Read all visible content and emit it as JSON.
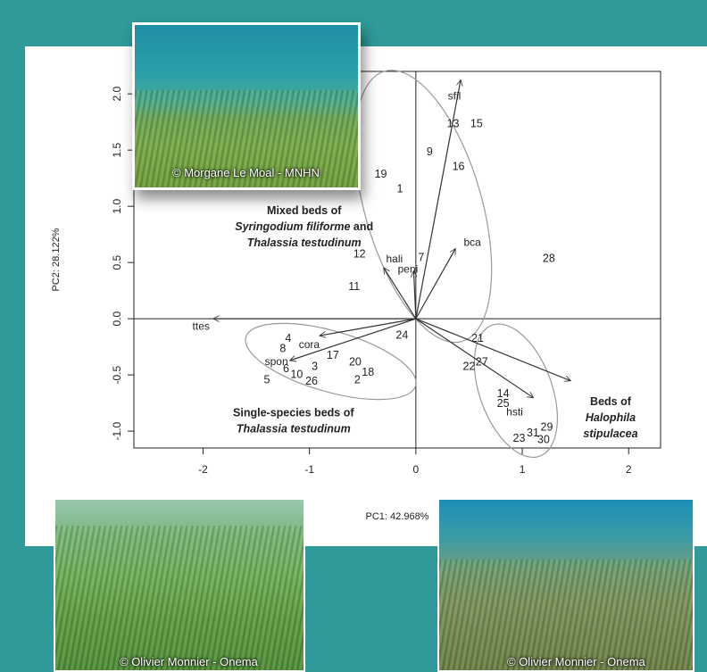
{
  "chart_data": {
    "type": "scatter",
    "title": "",
    "xlabel": "PC1: 42.968%",
    "ylabel": "PC2: 28.122%",
    "xlim": [
      -2.65,
      2.3
    ],
    "ylim": [
      -1.15,
      2.2
    ],
    "xticks": [
      -2,
      -1,
      0,
      1,
      2
    ],
    "yticks": [
      -1.0,
      -0.5,
      0.0,
      0.5,
      1.0,
      1.5,
      2.0
    ],
    "xtick_labels": [
      "-2",
      "-1",
      "0",
      "1",
      "2"
    ],
    "ytick_labels": [
      "-1.0",
      "-0.5",
      "0.0",
      "0.5",
      "1.0",
      "1.5",
      "2.0"
    ],
    "grid": false,
    "sites": [
      {
        "label": "1",
        "x": -0.15,
        "y": 1.15
      },
      {
        "label": "2",
        "x": -0.55,
        "y": -0.55
      },
      {
        "label": "3",
        "x": -0.95,
        "y": -0.43
      },
      {
        "label": "4",
        "x": -1.2,
        "y": -0.18
      },
      {
        "label": "5",
        "x": -1.4,
        "y": -0.55
      },
      {
        "label": "6",
        "x": -1.22,
        "y": -0.45
      },
      {
        "label": "7",
        "x": 0.05,
        "y": 0.54
      },
      {
        "label": "8",
        "x": -1.25,
        "y": -0.27
      },
      {
        "label": "9",
        "x": 0.13,
        "y": 1.48
      },
      {
        "label": "10",
        "x": -1.12,
        "y": -0.5
      },
      {
        "label": "11",
        "x": -0.58,
        "y": 0.28
      },
      {
        "label": "12",
        "x": -0.53,
        "y": 0.57
      },
      {
        "label": "13",
        "x": 0.35,
        "y": 1.73
      },
      {
        "label": "14",
        "x": 0.82,
        "y": -0.67
      },
      {
        "label": "15",
        "x": 0.57,
        "y": 1.73
      },
      {
        "label": "16",
        "x": 0.4,
        "y": 1.35
      },
      {
        "label": "17",
        "x": -0.78,
        "y": -0.33
      },
      {
        "label": "18",
        "x": -0.45,
        "y": -0.48
      },
      {
        "label": "19",
        "x": -0.33,
        "y": 1.28
      },
      {
        "label": "20",
        "x": -0.57,
        "y": -0.39
      },
      {
        "label": "21",
        "x": 0.58,
        "y": -0.18
      },
      {
        "label": "22",
        "x": 0.5,
        "y": -0.43
      },
      {
        "label": "23",
        "x": 0.97,
        "y": -1.07
      },
      {
        "label": "24",
        "x": -0.13,
        "y": -0.15
      },
      {
        "label": "25",
        "x": 0.82,
        "y": -0.76
      },
      {
        "label": "26",
        "x": -0.98,
        "y": -0.56
      },
      {
        "label": "27",
        "x": 0.62,
        "y": -0.39
      },
      {
        "label": "28",
        "x": 1.25,
        "y": 0.53
      },
      {
        "label": "29",
        "x": 1.23,
        "y": -0.97
      },
      {
        "label": "30",
        "x": 1.2,
        "y": -1.08
      },
      {
        "label": "31",
        "x": 1.1,
        "y": -1.02
      }
    ],
    "vectors": [
      {
        "label": "sfil",
        "x": 0.42,
        "y": 2.12,
        "lx": 0.3,
        "ly": 1.95
      },
      {
        "label": "bca",
        "x": 0.37,
        "y": 0.62,
        "lx": 0.45,
        "ly": 0.65
      },
      {
        "label": "hali",
        "x": -0.3,
        "y": 0.45,
        "lx": -0.28,
        "ly": 0.5
      },
      {
        "label": "peni",
        "x": -0.02,
        "y": 0.42,
        "lx": -0.17,
        "ly": 0.41
      },
      {
        "label": "ttes",
        "x": -1.9,
        "y": 0.0,
        "lx": -2.1,
        "ly": -0.1
      },
      {
        "label": "cora",
        "x": -0.9,
        "y": -0.15,
        "lx": -1.1,
        "ly": -0.26
      },
      {
        "label": "spon",
        "x": -1.18,
        "y": -0.37,
        "lx": -1.42,
        "ly": -0.41
      },
      {
        "label": "hsti",
        "x": 1.1,
        "y": -0.7,
        "lx": 0.85,
        "ly": -0.86
      },
      {
        "label": "",
        "x": 1.45,
        "y": -0.55,
        "lx": 0,
        "ly": 0
      }
    ],
    "ellipses": [
      {
        "cx": 0.07,
        "cy": 1.0,
        "rx": 0.55,
        "ry": 1.25,
        "angle": -16
      },
      {
        "cx": -0.8,
        "cy": -0.38,
        "rx": 0.83,
        "ry": 0.27,
        "angle": 16
      },
      {
        "cx": 0.94,
        "cy": -0.64,
        "rx": 0.34,
        "ry": 0.62,
        "angle": -20
      }
    ],
    "annotations": [
      {
        "lines": [
          [
            {
              "t": "Mixed beds of",
              "i": false
            }
          ],
          [
            {
              "t": "Syringodium filiforme",
              "i": true
            },
            {
              "t": " and",
              "i": false
            }
          ],
          [
            {
              "t": "Thalassia testudinum",
              "i": true
            }
          ]
        ],
        "x": -1.05,
        "y": 0.93
      },
      {
        "lines": [
          [
            {
              "t": "Single-species beds of",
              "i": false
            }
          ],
          [
            {
              "t": "Thalassia testudinum",
              "i": true
            }
          ]
        ],
        "x": -1.15,
        "y": -0.87
      },
      {
        "lines": [
          [
            {
              "t": "Beds of",
              "i": false
            }
          ],
          [
            {
              "t": "Halophila",
              "i": true
            }
          ],
          [
            {
              "t": "stipulacea",
              "i": true
            }
          ]
        ],
        "x": 1.83,
        "y": -0.77
      }
    ]
  },
  "photos": {
    "top_credit": "© Morgane Le Moal - MNHN",
    "bottom_left_credit": "© Olivier Monnier - Onema",
    "bottom_right_credit": "© Olivier Monnier - Onema"
  }
}
